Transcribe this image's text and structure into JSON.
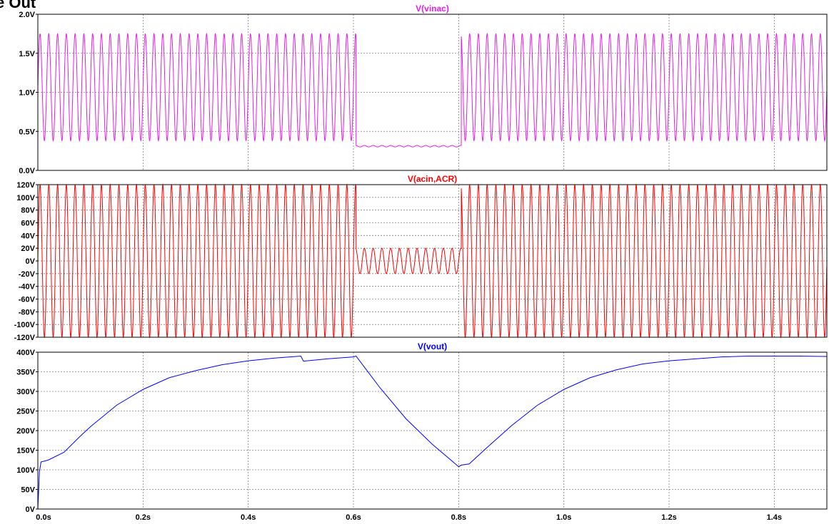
{
  "page_title": "e Out",
  "chart_data": [
    {
      "type": "line",
      "title": "V(vinac)",
      "color": "#e61ee6",
      "xlim": [
        0,
        1.5
      ],
      "ylim": [
        0,
        2.0
      ],
      "x_ticks": [
        "0.0s",
        "0.2s",
        "0.4s",
        "0.6s",
        "0.8s",
        "1.0s",
        "1.2s",
        "1.4s"
      ],
      "y_ticks": [
        "0.0V",
        "0.5V",
        "1.0V",
        "1.5V",
        "2.0V"
      ],
      "series": [
        {
          "segments": [
            {
              "x_start": 0.0,
              "x_end": 0.605,
              "y_min": 0.38,
              "y_max": 1.75,
              "frequency_hz": 60
            },
            {
              "x_start": 0.605,
              "x_end": 0.805,
              "y_min": 0.3,
              "y_max": 0.32,
              "frequency_hz": 60
            },
            {
              "x_start": 0.805,
              "x_end": 1.5,
              "y_min": 0.38,
              "y_max": 1.75,
              "frequency_hz": 60
            }
          ]
        }
      ]
    },
    {
      "type": "line",
      "title": "V(acin,ACR)",
      "color": "#ff0000",
      "xlim": [
        0,
        1.5
      ],
      "ylim": [
        -120,
        120
      ],
      "x_ticks": [
        "0.0s",
        "0.2s",
        "0.4s",
        "0.6s",
        "0.8s",
        "1.0s",
        "1.2s",
        "1.4s"
      ],
      "y_ticks": [
        "120V",
        "100V",
        "80V",
        "60V",
        "40V",
        "20V",
        "0V",
        "-20V",
        "-40V",
        "-60V",
        "-80V",
        "-100V",
        "-120V"
      ],
      "series": [
        {
          "segments": [
            {
              "x_start": 0.0,
              "x_end": 0.605,
              "amplitude": 120,
              "frequency_hz": 60
            },
            {
              "x_start": 0.605,
              "x_end": 0.805,
              "amplitude": 20,
              "frequency_hz": 60
            },
            {
              "x_start": 0.805,
              "x_end": 1.5,
              "amplitude": 120,
              "frequency_hz": 60
            }
          ]
        }
      ]
    },
    {
      "type": "line",
      "title": "V(vout)",
      "color": "#0000ff",
      "xlim": [
        0,
        1.5
      ],
      "ylim": [
        0,
        400
      ],
      "x_ticks": [
        "0.0s",
        "0.2s",
        "0.4s",
        "0.6s",
        "0.8s",
        "1.0s",
        "1.2s",
        "1.4s"
      ],
      "y_ticks": [
        "0V",
        "50V",
        "100V",
        "150V",
        "200V",
        "250V",
        "300V",
        "350V",
        "400V"
      ],
      "series": [
        {
          "x": [
            0,
            0.003,
            0.006,
            0.02,
            0.05,
            0.08,
            0.1,
            0.15,
            0.2,
            0.25,
            0.3,
            0.35,
            0.4,
            0.45,
            0.5,
            0.505,
            0.55,
            0.6,
            0.605,
            0.65,
            0.7,
            0.75,
            0.8,
            0.805,
            0.82,
            0.85,
            0.9,
            0.95,
            1.0,
            1.05,
            1.1,
            1.15,
            1.2,
            1.25,
            1.3,
            1.35,
            1.4,
            1.45,
            1.5
          ],
          "y": [
            0,
            95,
            120,
            125,
            145,
            185,
            210,
            265,
            305,
            335,
            353,
            368,
            378,
            385,
            390,
            377,
            383,
            388,
            390,
            310,
            230,
            165,
            108,
            112,
            115,
            152,
            212,
            265,
            305,
            335,
            355,
            370,
            378,
            383,
            388,
            390,
            390,
            390,
            389
          ]
        }
      ]
    }
  ]
}
